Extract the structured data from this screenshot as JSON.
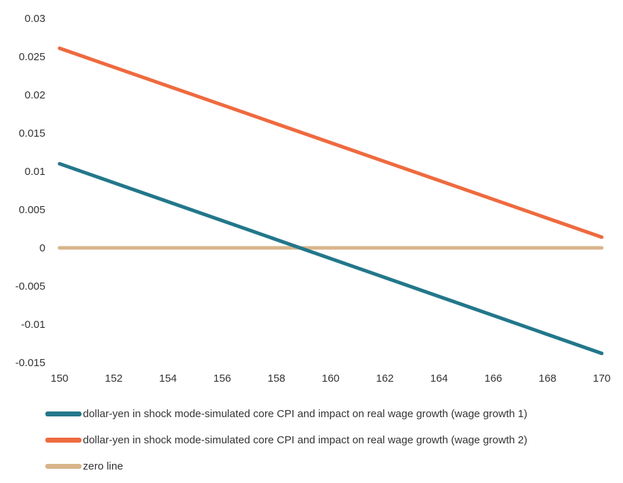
{
  "chart_data": {
    "type": "line",
    "title": "",
    "xlabel": "",
    "ylabel": "",
    "xlim": [
      150,
      170
    ],
    "ylim": [
      -0.015,
      0.03
    ],
    "x_ticks": [
      "150",
      "152",
      "154",
      "156",
      "158",
      "160",
      "162",
      "164",
      "166",
      "168",
      "170"
    ],
    "y_ticks": [
      "0.03",
      "0.025",
      "0.02",
      "0.015",
      "0.01",
      "0.005",
      "0",
      "-0.005",
      "-0.01",
      "-0.015"
    ],
    "grid": false,
    "legend_position": "bottom",
    "series": [
      {
        "name": "dollar-yen in shock mode-simulated core CPI and impact on real wage growth (wage growth 1)",
        "color": "#23778a",
        "x": [
          150,
          170
        ],
        "y": [
          0.011,
          -0.0138
        ]
      },
      {
        "name": "dollar-yen in shock mode-simulated core CPI and impact on real wage growth (wage growth 2)",
        "color": "#ef6a3f",
        "x": [
          150,
          170
        ],
        "y": [
          0.0261,
          0.0014
        ]
      },
      {
        "name": "zero line",
        "color": "#d9b48a",
        "x": [
          150,
          170
        ],
        "y": [
          0,
          0
        ]
      }
    ]
  }
}
